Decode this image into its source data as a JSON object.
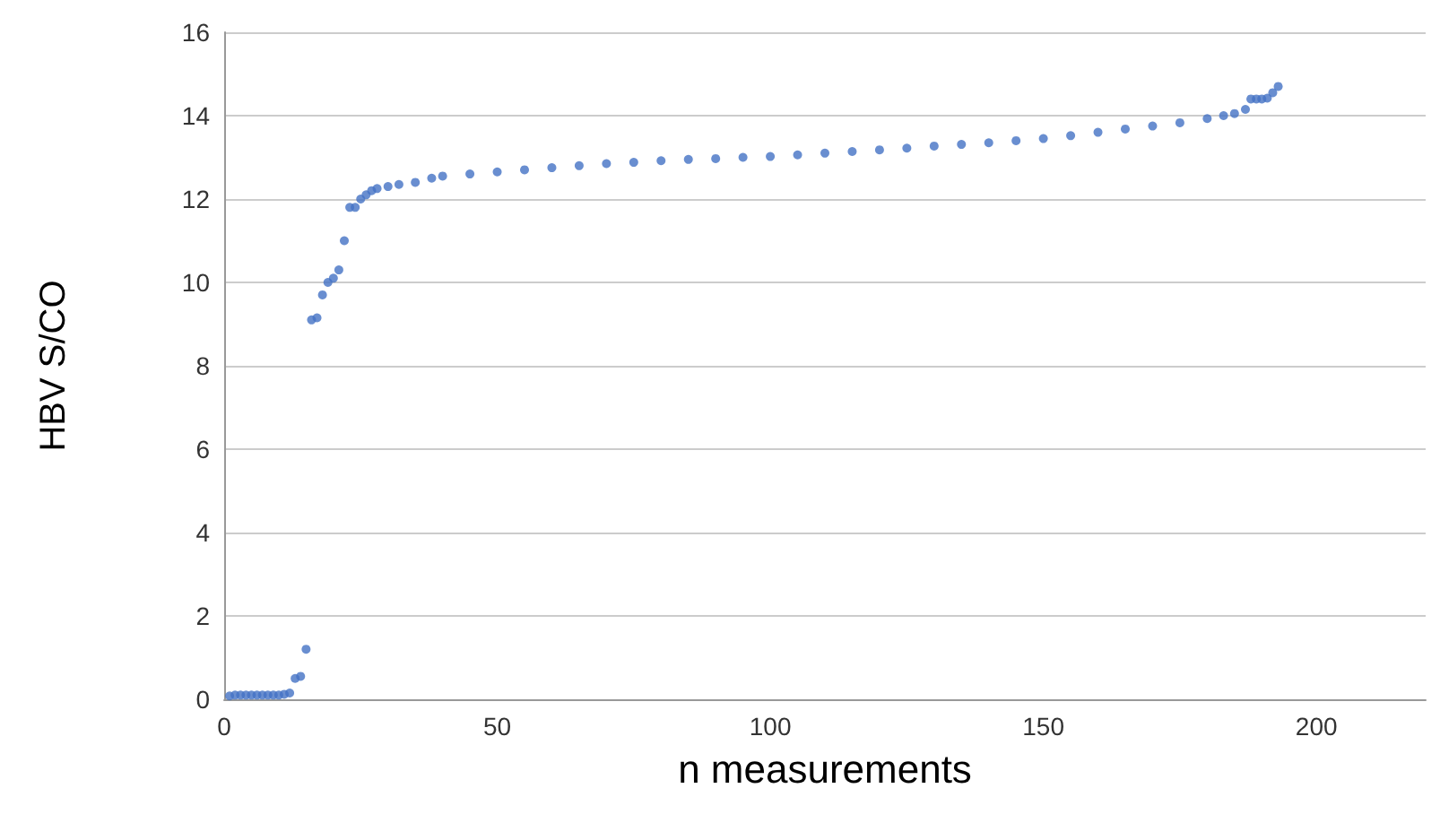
{
  "chart_data": {
    "type": "scatter",
    "xlabel": "n measurements",
    "ylabel": "HBV S/CO",
    "x": [
      1,
      2,
      3,
      4,
      5,
      6,
      7,
      8,
      9,
      10,
      11,
      12,
      13,
      14,
      15,
      16,
      17,
      18,
      19,
      20,
      21,
      22,
      23,
      24,
      25,
      26,
      27,
      28,
      30,
      32,
      35,
      38,
      40,
      45,
      50,
      55,
      60,
      65,
      70,
      75,
      80,
      85,
      90,
      95,
      100,
      105,
      110,
      115,
      120,
      125,
      130,
      135,
      140,
      145,
      150,
      155,
      160,
      165,
      170,
      175,
      180,
      183,
      185,
      187,
      188,
      189,
      190,
      191,
      192,
      193
    ],
    "series": [
      {
        "color": "#4472c4",
        "values": [
          0.08,
          0.1,
          0.1,
          0.1,
          0.1,
          0.1,
          0.1,
          0.1,
          0.1,
          0.1,
          0.12,
          0.15,
          0.5,
          0.55,
          1.2,
          9.1,
          9.15,
          9.7,
          10.0,
          10.1,
          10.3,
          11.0,
          11.8,
          11.8,
          12.0,
          12.1,
          12.2,
          12.25,
          12.3,
          12.35,
          12.4,
          12.5,
          12.55,
          12.6,
          12.65,
          12.7,
          12.75,
          12.8,
          12.85,
          12.88,
          12.92,
          12.95,
          12.97,
          13.0,
          13.02,
          13.06,
          13.1,
          13.14,
          13.18,
          13.22,
          13.27,
          13.31,
          13.35,
          13.4,
          13.45,
          13.52,
          13.6,
          13.68,
          13.75,
          13.83,
          13.93,
          14.0,
          14.05,
          14.15,
          14.4,
          14.4,
          14.4,
          14.42,
          14.55,
          14.7
        ]
      }
    ],
    "xlim": [
      0,
      220
    ],
    "xticks": [
      0,
      50,
      100,
      150,
      200
    ],
    "ylim": [
      0,
      16
    ],
    "yticks": [
      0,
      2,
      4,
      6,
      8,
      10,
      12,
      14,
      16
    ],
    "grid": "y",
    "marker": "circle"
  }
}
